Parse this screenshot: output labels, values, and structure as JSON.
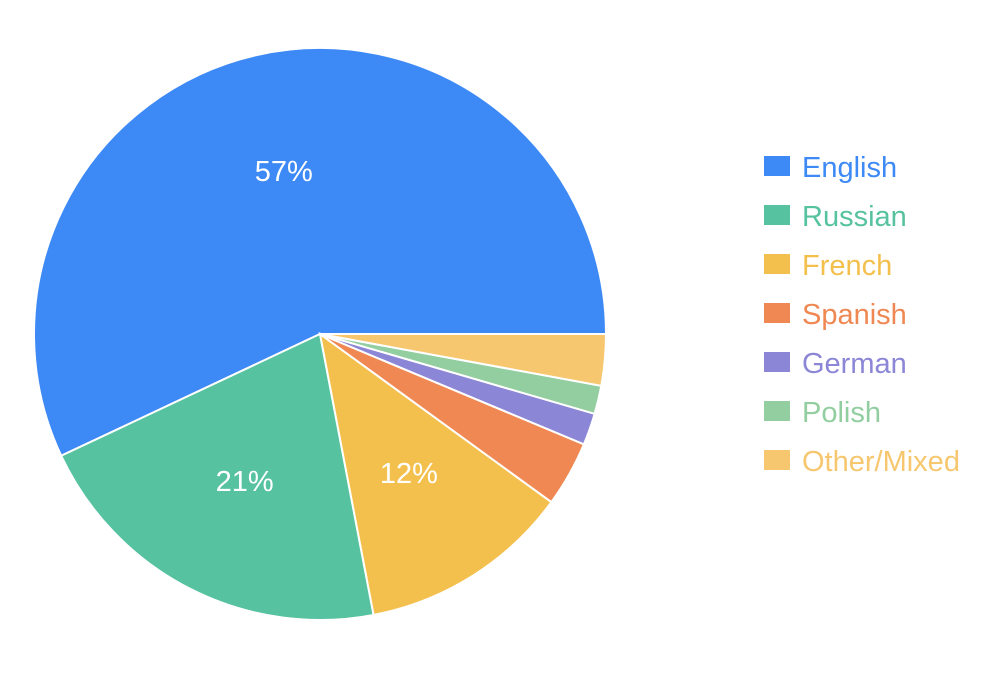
{
  "chart_data": {
    "type": "pie",
    "title": "",
    "legend_position": "right",
    "slices": [
      {
        "label": "English",
        "value": 57,
        "display": "57%",
        "color": "#3d89f5"
      },
      {
        "label": "Russian",
        "value": 21,
        "display": "21%",
        "color": "#56c2a0"
      },
      {
        "label": "French",
        "value": 12,
        "display": "12%",
        "color": "#f4c04d"
      },
      {
        "label": "Spanish",
        "value": 3.7,
        "display": "",
        "color": "#ef8852"
      },
      {
        "label": "German",
        "value": 1.8,
        "display": "",
        "color": "#8b86d6"
      },
      {
        "label": "Polish",
        "value": 1.6,
        "display": "",
        "color": "#92cea0"
      },
      {
        "label": "Other/Mixed",
        "value": 2.9,
        "display": "",
        "color": "#f6c76e"
      }
    ]
  }
}
